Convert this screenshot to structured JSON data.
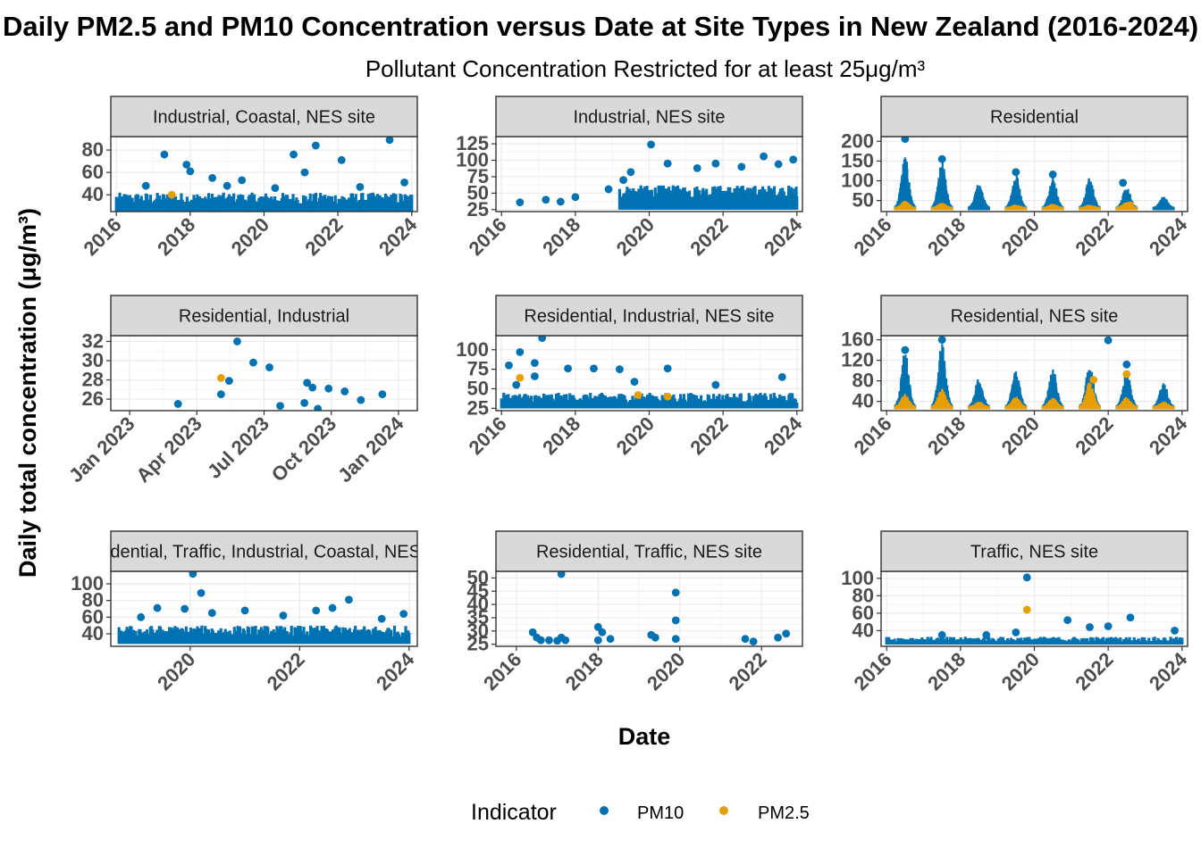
{
  "chart_data": {
    "type": "scatter",
    "title": "Daily PM2.5 and PM10 Concentration versus Date at Site Types in New Zealand (2016-2024)",
    "subtitle": "Pollutant Concentration Restricted for at least 25μg/m³",
    "xlabel": "Date",
    "ylabel": "Daily total concentration (μg/m³)",
    "legend": {
      "title": "Indicator",
      "position": "bottom",
      "items": [
        {
          "name": "PM10",
          "color": "#0072B2"
        },
        {
          "name": "PM2.5",
          "color": "#E69F00"
        }
      ]
    },
    "grid": true,
    "panels": [
      {
        "strip": "Industrial, Coastal, NES site",
        "xlim": [
          2015.85,
          2024.15
        ],
        "ylim": [
          25,
          92
        ],
        "xticks": [
          2016,
          2018,
          2020,
          2022,
          2024
        ],
        "xtick_labels": [
          "2016",
          "2018",
          "2020",
          "2022",
          "2024"
        ],
        "yticks": [
          40,
          60,
          80
        ],
        "series": [
          {
            "name": "PM10",
            "band": {
              "from": 2016.0,
              "to": 2024.0,
              "low": 25,
              "high": 42
            },
            "points": [
              [
                2017.3,
                76
              ],
              [
                2017.9,
                67
              ],
              [
                2018.0,
                61
              ],
              [
                2018.6,
                55
              ],
              [
                2019.4,
                53
              ],
              [
                2020.3,
                46
              ],
              [
                2020.8,
                76
              ],
              [
                2021.1,
                60
              ],
              [
                2021.4,
                84
              ],
              [
                2022.1,
                71
              ],
              [
                2023.4,
                89
              ],
              [
                2023.8,
                51
              ],
              [
                2022.6,
                47
              ],
              [
                2019.0,
                48
              ],
              [
                2016.8,
                48
              ]
            ]
          },
          {
            "name": "PM2.5",
            "points": [
              [
                2017.5,
                40
              ]
            ]
          }
        ]
      },
      {
        "strip": "Industrial, NES site",
        "xlim": [
          2015.85,
          2024.15
        ],
        "ylim": [
          22,
          136
        ],
        "xticks": [
          2016,
          2018,
          2020,
          2022,
          2024
        ],
        "xtick_labels": [
          "2016",
          "2018",
          "2020",
          "2022",
          "2024"
        ],
        "yticks": [
          25,
          50,
          75,
          100,
          125
        ],
        "series": [
          {
            "name": "PM10",
            "band": {
              "from": 2019.2,
              "to": 2024.0,
              "low": 25,
              "high": 62
            },
            "points": [
              [
                2020.05,
                124
              ],
              [
                2016.5,
                36
              ],
              [
                2017.2,
                40
              ],
              [
                2018.0,
                44
              ],
              [
                2018.9,
                56
              ],
              [
                2019.5,
                82
              ],
              [
                2020.5,
                95
              ],
              [
                2021.3,
                88
              ],
              [
                2021.8,
                95
              ],
              [
                2022.5,
                90
              ],
              [
                2023.1,
                106
              ],
              [
                2023.5,
                94
              ],
              [
                2023.9,
                101
              ],
              [
                2019.3,
                70
              ],
              [
                2017.6,
                37
              ]
            ]
          }
        ]
      },
      {
        "strip": "Residential",
        "xlim": [
          2015.85,
          2024.15
        ],
        "ylim": [
          22,
          212
        ],
        "xticks": [
          2016,
          2018,
          2020,
          2022,
          2024
        ],
        "xtick_labels": [
          "2016",
          "2018",
          "2020",
          "2022",
          "2024"
        ],
        "yticks": [
          50,
          100,
          150,
          200
        ],
        "series": [
          {
            "name": "PM10",
            "peaks": [
              [
                2016.5,
                165
              ],
              [
                2017.5,
                150
              ],
              [
                2018.5,
                95
              ],
              [
                2019.5,
                120
              ],
              [
                2020.5,
                112
              ],
              [
                2021.5,
                110
              ],
              [
                2022.5,
                85
              ],
              [
                2023.5,
                62
              ]
            ],
            "points": [
              [
                2016.5,
                206
              ],
              [
                2017.5,
                155
              ],
              [
                2019.5,
                122
              ],
              [
                2020.5,
                116
              ],
              [
                2022.4,
                95
              ]
            ]
          },
          {
            "name": "PM2.5",
            "peaks": [
              [
                2016.5,
                50
              ],
              [
                2017.5,
                45
              ],
              [
                2019.5,
                40
              ],
              [
                2020.5,
                42
              ],
              [
                2021.5,
                40
              ],
              [
                2022.5,
                48
              ]
            ],
            "points": [
              [
                2022.6,
                38
              ],
              [
                2016.55,
                35
              ]
            ]
          }
        ]
      },
      {
        "strip": "Residential, Industrial",
        "xlim": [
          2022.93,
          2024.07
        ],
        "ylim": [
          24.8,
          32.6
        ],
        "xticks": [
          2023.0,
          2023.25,
          2023.5,
          2023.75,
          2024.0
        ],
        "xtick_labels": [
          "Jan 2023",
          "Apr 2023",
          "Jul 2023",
          "Oct 2023",
          "Jan 2024"
        ],
        "yticks": [
          26,
          28,
          30,
          32
        ],
        "series": [
          {
            "name": "PM10",
            "points": [
              [
                2023.18,
                25.5
              ],
              [
                2023.34,
                26.5
              ],
              [
                2023.37,
                27.9
              ],
              [
                2023.4,
                32.0
              ],
              [
                2023.46,
                29.8
              ],
              [
                2023.52,
                29.3
              ],
              [
                2023.56,
                25.3
              ],
              [
                2023.65,
                25.6
              ],
              [
                2023.66,
                27.7
              ],
              [
                2023.68,
                27.2
              ],
              [
                2023.7,
                25.0
              ],
              [
                2023.74,
                27.1
              ],
              [
                2023.8,
                26.8
              ],
              [
                2023.86,
                25.9
              ],
              [
                2023.94,
                26.5
              ]
            ]
          },
          {
            "name": "PM2.5",
            "points": [
              [
                2023.34,
                28.2
              ]
            ]
          }
        ]
      },
      {
        "strip": "Residential, Industrial, NES site",
        "xlim": [
          2015.85,
          2024.15
        ],
        "ylim": [
          22,
          118
        ],
        "xticks": [
          2016,
          2018,
          2020,
          2022,
          2024
        ],
        "xtick_labels": [
          "2016",
          "2018",
          "2020",
          "2022",
          "2024"
        ],
        "yticks": [
          25,
          50,
          75,
          100
        ],
        "series": [
          {
            "name": "PM10",
            "band": {
              "from": 2016.0,
              "to": 2024.0,
              "low": 25,
              "high": 45
            },
            "points": [
              [
                2017.1,
                115
              ],
              [
                2016.5,
                97
              ],
              [
                2016.2,
                80
              ],
              [
                2016.9,
                83
              ],
              [
                2017.8,
                76
              ],
              [
                2018.5,
                76
              ],
              [
                2019.2,
                75
              ],
              [
                2020.5,
                76
              ],
              [
                2016.4,
                55
              ],
              [
                2021.8,
                55
              ],
              [
                2023.6,
                65
              ],
              [
                2019.6,
                59
              ],
              [
                2016.9,
                66
              ]
            ]
          },
          {
            "name": "PM2.5",
            "points": [
              [
                2016.5,
                64
              ],
              [
                2019.7,
                42
              ],
              [
                2020.5,
                40
              ]
            ]
          }
        ]
      },
      {
        "strip": "Residential, NES site",
        "xlim": [
          2015.85,
          2024.15
        ],
        "ylim": [
          22,
          168
        ],
        "xticks": [
          2016,
          2018,
          2020,
          2022,
          2024
        ],
        "xtick_labels": [
          "2016",
          "2018",
          "2020",
          "2022",
          "2024"
        ],
        "yticks": [
          40,
          80,
          120,
          160
        ],
        "series": [
          {
            "name": "PM10",
            "peaks": [
              [
                2016.5,
                140
              ],
              [
                2017.5,
                155
              ],
              [
                2018.5,
                90
              ],
              [
                2019.5,
                105
              ],
              [
                2020.5,
                112
              ],
              [
                2021.5,
                115
              ],
              [
                2022.5,
                105
              ],
              [
                2023.5,
                80
              ]
            ],
            "points": [
              [
                2017.5,
                160
              ],
              [
                2022.0,
                159
              ],
              [
                2016.5,
                140
              ],
              [
                2022.5,
                112
              ]
            ]
          },
          {
            "name": "PM2.5",
            "peaks": [
              [
                2016.5,
                55
              ],
              [
                2017.5,
                65
              ],
              [
                2018.5,
                40
              ],
              [
                2019.5,
                50
              ],
              [
                2020.5,
                48
              ],
              [
                2021.5,
                78
              ],
              [
                2022.5,
                50
              ],
              [
                2023.5,
                40
              ]
            ],
            "points": [
              [
                2021.6,
                82
              ],
              [
                2022.5,
                93
              ]
            ]
          }
        ]
      },
      {
        "strip": "Residential, Traffic, Industrial, Coastal, NES site",
        "xlim": [
          2018.55,
          2024.15
        ],
        "ylim": [
          25,
          115
        ],
        "xticks": [
          2020,
          2022,
          2024
        ],
        "xtick_labels": [
          "2020",
          "2022",
          "2024"
        ],
        "yticks": [
          40,
          60,
          80,
          100
        ],
        "series": [
          {
            "name": "PM10",
            "band": {
              "from": 2018.7,
              "to": 2024.0,
              "low": 28,
              "high": 50
            },
            "points": [
              [
                2020.05,
                112
              ],
              [
                2020.2,
                89
              ],
              [
                2019.4,
                71
              ],
              [
                2019.9,
                70
              ],
              [
                2020.4,
                65
              ],
              [
                2021.0,
                68
              ],
              [
                2021.7,
                62
              ],
              [
                2022.3,
                68
              ],
              [
                2022.6,
                71
              ],
              [
                2022.9,
                81
              ],
              [
                2023.9,
                64
              ],
              [
                2019.1,
                60
              ],
              [
                2023.5,
                58
              ]
            ]
          }
        ]
      },
      {
        "strip": "Residential, Traffic, NES site",
        "xlim": [
          2015.5,
          2023.0
        ],
        "ylim": [
          24.2,
          52.5
        ],
        "xticks": [
          2016,
          2018,
          2020,
          2022
        ],
        "xtick_labels": [
          "2016",
          "2018",
          "2020",
          "2022"
        ],
        "yticks": [
          25,
          30,
          35,
          40,
          45,
          50
        ],
        "series": [
          {
            "name": "PM10",
            "points": [
              [
                2016.4,
                29.5
              ],
              [
                2016.5,
                27.5
              ],
              [
                2016.6,
                26.5
              ],
              [
                2016.8,
                26.5
              ],
              [
                2017.0,
                26.3
              ],
              [
                2017.1,
                27.5
              ],
              [
                2017.1,
                51.5
              ],
              [
                2017.2,
                26.5
              ],
              [
                2018.0,
                31.5
              ],
              [
                2018.0,
                26.5
              ],
              [
                2018.1,
                29.5
              ],
              [
                2018.3,
                27
              ],
              [
                2019.3,
                28.5
              ],
              [
                2019.4,
                27.5
              ],
              [
                2019.9,
                44.5
              ],
              [
                2019.9,
                34
              ],
              [
                2019.9,
                27
              ],
              [
                2021.6,
                27
              ],
              [
                2021.8,
                26
              ],
              [
                2022.4,
                27.5
              ],
              [
                2022.6,
                29
              ]
            ]
          }
        ]
      },
      {
        "strip": "Traffic, NES site",
        "xlim": [
          2015.85,
          2024.15
        ],
        "ylim": [
          22,
          108
        ],
        "xticks": [
          2016,
          2018,
          2020,
          2022,
          2024
        ],
        "xtick_labels": [
          "2016",
          "2018",
          "2020",
          "2022",
          "2024"
        ],
        "yticks": [
          40,
          60,
          80,
          100
        ],
        "series": [
          {
            "name": "PM10",
            "band": {
              "from": 2016.0,
              "to": 2024.0,
              "low": 24,
              "high": 33
            },
            "points": [
              [
                2019.8,
                101
              ],
              [
                2020.9,
                52
              ],
              [
                2022.6,
                55
              ],
              [
                2021.5,
                44
              ],
              [
                2022.0,
                45
              ],
              [
                2023.8,
                40
              ],
              [
                2017.5,
                35
              ],
              [
                2019.5,
                38
              ],
              [
                2018.7,
                35
              ]
            ]
          },
          {
            "name": "PM2.5",
            "points": [
              [
                2019.8,
                64
              ]
            ]
          }
        ]
      }
    ]
  }
}
